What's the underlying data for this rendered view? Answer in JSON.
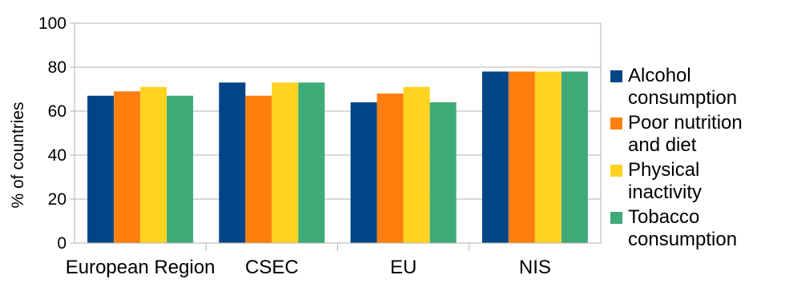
{
  "chart_data": {
    "type": "bar",
    "categories": [
      "European Region",
      "CSEC",
      "EU",
      "NIS"
    ],
    "series": [
      {
        "name": "Alcohol consumption",
        "color": "#004586",
        "values": [
          67,
          73,
          64,
          78
        ]
      },
      {
        "name": "Poor nutrition and diet",
        "color": "#ff7f0e",
        "values": [
          69,
          67,
          68,
          78
        ]
      },
      {
        "name": "Physical inactivity",
        "color": "#ffd320",
        "values": [
          71,
          73,
          71,
          78
        ]
      },
      {
        "name": "Tobacco consumption",
        "color": "#3eaa78",
        "values": [
          67,
          73,
          64,
          78
        ]
      }
    ],
    "ylabel": "% of countries",
    "xlabel": "",
    "ylim": [
      0,
      100
    ],
    "yticks": [
      0,
      20,
      40,
      60,
      80,
      100
    ],
    "grid": true,
    "legend_position": "right"
  }
}
